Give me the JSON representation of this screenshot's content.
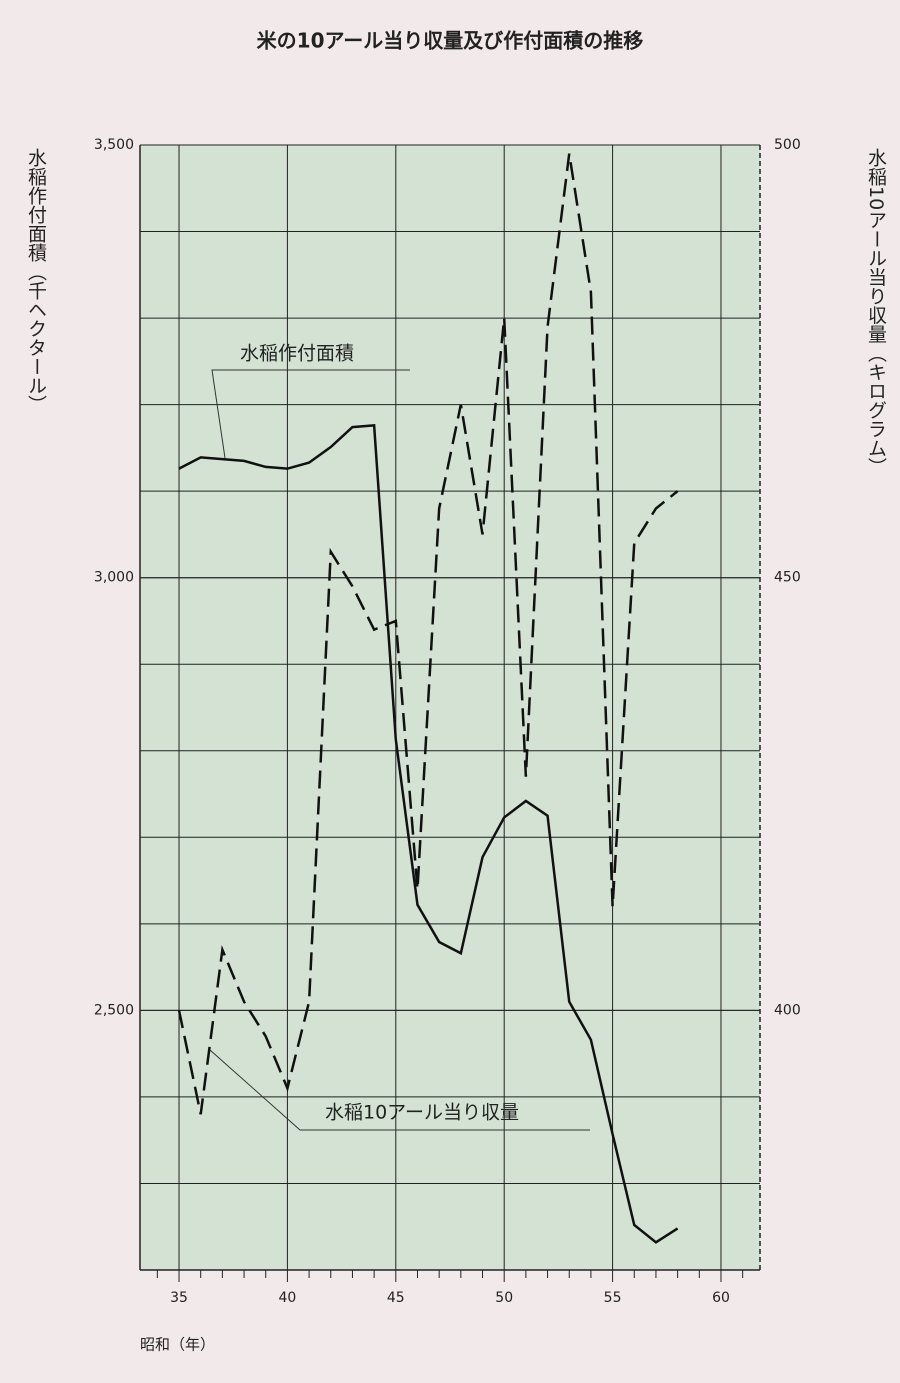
{
  "chart_data": {
    "type": "line",
    "title": "米の10アール当り収量及び作付面積の推移",
    "ylabel": "水稲作付面積（千ヘクタール）",
    "y2label": "水稲10アール当り収量（キログラム）",
    "xlabel": "昭和（年）",
    "x": [
      35,
      36,
      37,
      38,
      39,
      40,
      41,
      42,
      43,
      44,
      45,
      46,
      47,
      48,
      49,
      50,
      51,
      52,
      53,
      54,
      55,
      56,
      57,
      58
    ],
    "series": [
      {
        "name": "水稲作付面積",
        "color": "#111111",
        "dash": false,
        "values": [
          3126,
          3139,
          3137,
          3135,
          3128,
          3126,
          3133,
          3151,
          3174,
          3176,
          2813,
          2622,
          2579,
          2566,
          2677,
          2723,
          2742,
          2725,
          2510,
          2466,
          2357,
          2252,
          2232,
          2248
        ]
      },
      {
        "name": "水稲10アール当り収量",
        "color": "#111111",
        "dash": true,
        "axis": "y2",
        "values": [
          400,
          388,
          407,
          401,
          397,
          391,
          401,
          453,
          449,
          444,
          445,
          414,
          458,
          470,
          455,
          480,
          427,
          479,
          499,
          483,
          412,
          454,
          458,
          460
        ]
      }
    ],
    "xlim": [
      33.2,
      61.8
    ],
    "xticks": [
      35,
      40,
      45,
      50,
      55,
      60
    ],
    "xminor_ticks": [
      34,
      36,
      37,
      38,
      39,
      41,
      42,
      43,
      44,
      46,
      47,
      48,
      49,
      51,
      52,
      53,
      54,
      56,
      57,
      58,
      59,
      61
    ],
    "ylim": [
      2200,
      3500
    ],
    "yticks": [
      {
        "value": 2500,
        "label": "2,500"
      },
      {
        "value": 3000,
        "label": "3,000"
      },
      {
        "value": 3500,
        "label": "3,500"
      }
    ],
    "ygrid": [
      2300,
      2400,
      2500,
      2600,
      2700,
      2800,
      2900,
      3000,
      3100,
      3200,
      3300,
      3400
    ],
    "y2lim": [
      370,
      500
    ],
    "y2ticks": [
      400,
      450,
      500
    ],
    "grid": true,
    "plot_color": "#d3e2d2"
  }
}
